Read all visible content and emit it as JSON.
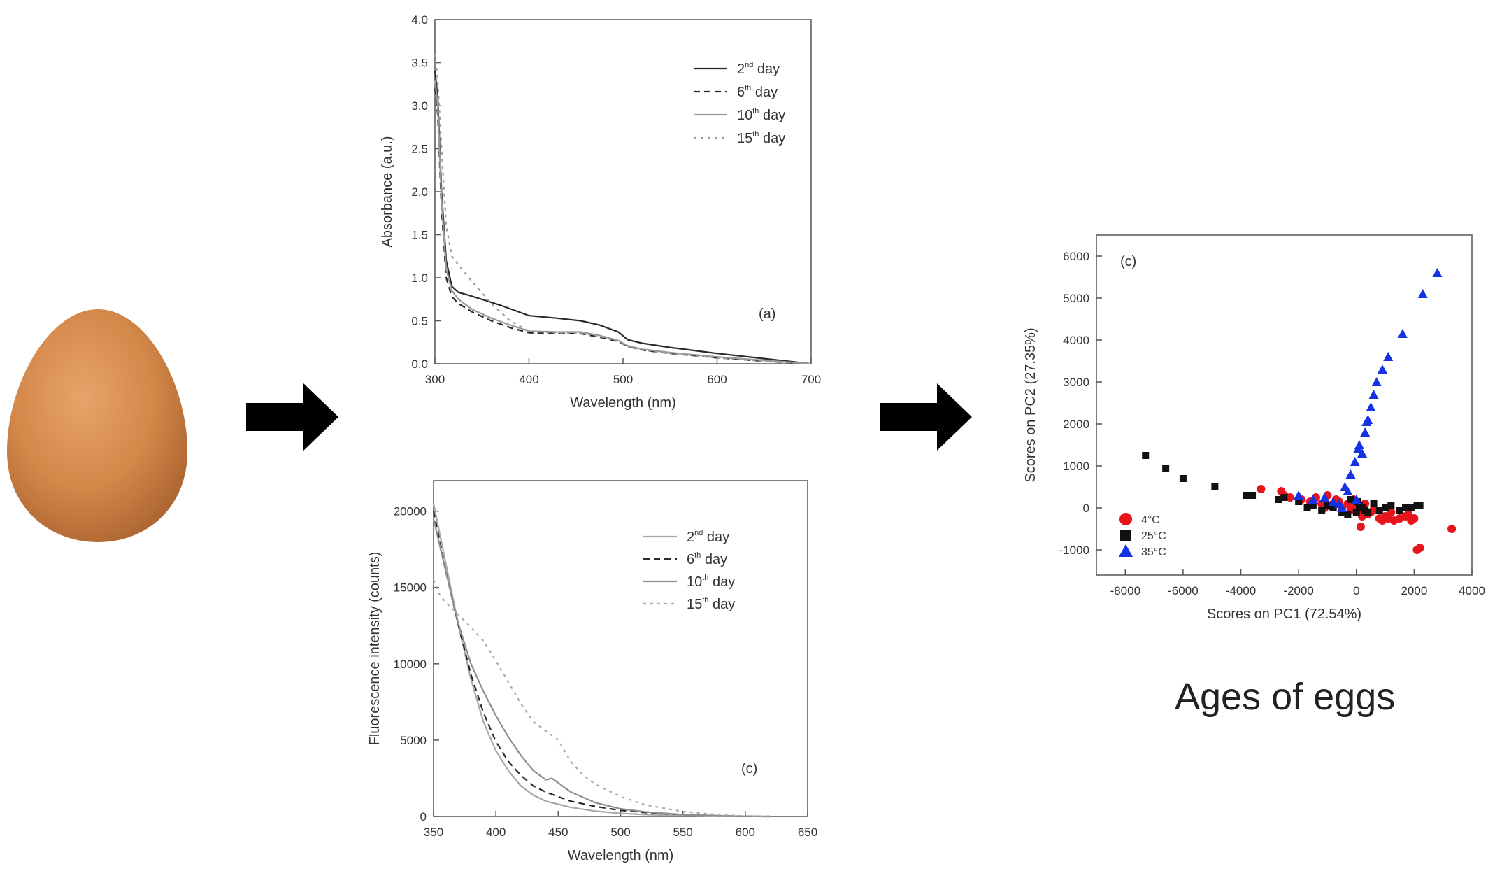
{
  "caption": "Ages of eggs",
  "colors": {
    "red": "#e8141c",
    "black": "#111111",
    "blue": "#1432e6",
    "egg": "#d4884a"
  },
  "chart_data": [
    {
      "type": "line",
      "xlabel": "Wavelength (nm)",
      "ylabel": "Absorbance (a.u.)",
      "xlim": [
        300,
        700
      ],
      "ylim": [
        0,
        4.0
      ],
      "xticks": [
        300,
        400,
        500,
        600,
        700
      ],
      "yticks": [
        0.0,
        0.5,
        1.0,
        1.5,
        2.0,
        2.5,
        3.0,
        3.5,
        4.0
      ],
      "ytick_labels": [
        "0.0",
        "0.5",
        "1.0",
        "1.5",
        "2.0",
        "2.5",
        "3.0",
        "3.5",
        "4.0"
      ],
      "annotation": "(a)",
      "legend_position": "top-right",
      "series": [
        {
          "name": "2nd day",
          "label_num": "2",
          "label_sup": "nd",
          "label_tail": " day",
          "style": "solid",
          "color": "#2a2a2a",
          "x": [
            300,
            303,
            307,
            312,
            318,
            325,
            335,
            350,
            370,
            400,
            430,
            455,
            475,
            495,
            505,
            520,
            550,
            600,
            650,
            700
          ],
          "y": [
            3.4,
            3.1,
            2.0,
            1.2,
            0.9,
            0.83,
            0.8,
            0.75,
            0.68,
            0.56,
            0.53,
            0.5,
            0.45,
            0.37,
            0.28,
            0.24,
            0.19,
            0.12,
            0.06,
            0.0
          ]
        },
        {
          "name": "6th day",
          "label_num": "6",
          "label_sup": "th",
          "label_tail": " day",
          "style": "dashed",
          "color": "#2a2a2a",
          "x": [
            300,
            303,
            307,
            312,
            318,
            325,
            340,
            360,
            380,
            400,
            430,
            455,
            475,
            495,
            505,
            520,
            550,
            600,
            650,
            700
          ],
          "y": [
            3.2,
            2.9,
            1.8,
            1.0,
            0.78,
            0.7,
            0.6,
            0.5,
            0.42,
            0.36,
            0.35,
            0.35,
            0.31,
            0.26,
            0.2,
            0.16,
            0.12,
            0.07,
            0.03,
            0.0
          ]
        },
        {
          "name": "10th day",
          "label_num": "10",
          "label_sup": "th",
          "label_tail": " day",
          "style": "solid",
          "color": "#9a9a9a",
          "x": [
            300,
            303,
            307,
            312,
            318,
            325,
            340,
            360,
            380,
            400,
            430,
            455,
            475,
            495,
            505,
            520,
            550,
            600,
            650,
            700
          ],
          "y": [
            3.3,
            3.0,
            1.9,
            1.1,
            0.85,
            0.75,
            0.63,
            0.53,
            0.45,
            0.38,
            0.37,
            0.37,
            0.33,
            0.27,
            0.21,
            0.17,
            0.13,
            0.08,
            0.04,
            0.0
          ]
        },
        {
          "name": "15th day",
          "label_num": "15",
          "label_sup": "th",
          "label_tail": " day",
          "style": "dotted",
          "color": "#9a9a9a",
          "x": [
            300,
            303,
            307,
            312,
            318,
            325,
            340,
            360,
            380,
            400,
            430,
            455,
            475,
            495,
            505,
            520,
            550,
            600,
            650,
            700
          ],
          "y": [
            3.6,
            3.3,
            2.5,
            1.6,
            1.25,
            1.15,
            0.95,
            0.7,
            0.5,
            0.38,
            0.36,
            0.36,
            0.32,
            0.26,
            0.2,
            0.16,
            0.12,
            0.07,
            0.03,
            0.0
          ]
        }
      ]
    },
    {
      "type": "line",
      "xlabel": "Wavelength (nm)",
      "ylabel": "Fluorescence intensity (counts)",
      "xlim": [
        350,
        650
      ],
      "ylim": [
        0,
        22000
      ],
      "xticks": [
        350,
        400,
        450,
        500,
        550,
        600,
        650
      ],
      "yticks": [
        0,
        5000,
        10000,
        15000,
        20000
      ],
      "ytick_labels": [
        "0",
        "5000",
        "10000",
        "15000",
        "20000"
      ],
      "annotation": "(c)",
      "legend_position": "top-right",
      "series": [
        {
          "name": "2nd day",
          "label_num": "2",
          "label_sup": "nd",
          "label_tail": " day",
          "style": "solid",
          "color": "#a8a8a8",
          "x": [
            350,
            360,
            370,
            380,
            390,
            400,
            410,
            420,
            430,
            440,
            450,
            460,
            480,
            500,
            520,
            550,
            580,
            600,
            620
          ],
          "y": [
            20500,
            16500,
            12500,
            9000,
            6200,
            4300,
            3000,
            2000,
            1400,
            1000,
            800,
            600,
            350,
            200,
            120,
            60,
            20,
            5,
            0
          ]
        },
        {
          "name": "6th day",
          "label_num": "6",
          "label_sup": "th",
          "label_tail": " day",
          "style": "dashed",
          "color": "#2a2a2a",
          "x": [
            350,
            360,
            370,
            380,
            390,
            400,
            410,
            420,
            430,
            440,
            450,
            460,
            480,
            500,
            520,
            550,
            580,
            600,
            620
          ],
          "y": [
            20000,
            16000,
            12500,
            9300,
            6800,
            4900,
            3600,
            2700,
            2000,
            1600,
            1300,
            1000,
            650,
            400,
            250,
            120,
            40,
            10,
            0
          ]
        },
        {
          "name": "10th day",
          "label_num": "10",
          "label_sup": "th",
          "label_tail": " day",
          "style": "solid",
          "color": "#8e8e8e",
          "x": [
            350,
            360,
            370,
            380,
            390,
            400,
            410,
            420,
            430,
            440,
            445,
            450,
            460,
            480,
            500,
            520,
            550,
            580,
            600,
            620
          ],
          "y": [
            19500,
            16000,
            12600,
            10000,
            8200,
            6600,
            5200,
            4000,
            3000,
            2400,
            2500,
            2200,
            1600,
            900,
            500,
            300,
            120,
            40,
            10,
            0
          ]
        },
        {
          "name": "15th day",
          "label_num": "15",
          "label_sup": "th",
          "label_tail": " day",
          "style": "dotted",
          "color": "#a8a8a8",
          "x": [
            350,
            355,
            360,
            370,
            380,
            390,
            400,
            410,
            420,
            430,
            440,
            450,
            460,
            470,
            480,
            500,
            520,
            550,
            580,
            600,
            620
          ],
          "y": [
            15500,
            14500,
            14000,
            13200,
            12400,
            11500,
            10200,
            8800,
            7400,
            6200,
            5600,
            5000,
            3600,
            2700,
            2100,
            1300,
            750,
            320,
            100,
            30,
            0
          ]
        }
      ]
    },
    {
      "type": "scatter",
      "xlabel": "Scores on PC1 (72.54%)",
      "ylabel": "Scores on PC2 (27.35%)",
      "xlim": [
        -9000,
        4000
      ],
      "ylim": [
        -1600,
        6500
      ],
      "xticks": [
        -8000,
        -6000,
        -4000,
        -2000,
        0,
        2000,
        4000
      ],
      "yticks": [
        -1000,
        0,
        1000,
        2000,
        3000,
        4000,
        5000,
        6000
      ],
      "ytick_labels": [
        "-1000",
        "0",
        "1000",
        "2000",
        "3000",
        "4000",
        "5000",
        "6000"
      ],
      "annotation": "(c)",
      "legend_position": "bottom-left",
      "series": [
        {
          "name": "4°C",
          "marker": "circle",
          "color": "#e8141c",
          "points": [
            [
              -3300,
              450
            ],
            [
              -2600,
              400
            ],
            [
              -2500,
              300
            ],
            [
              -2300,
              250
            ],
            [
              -1900,
              200
            ],
            [
              -1600,
              150
            ],
            [
              -1400,
              250
            ],
            [
              -1200,
              100
            ],
            [
              -1100,
              0
            ],
            [
              -1000,
              300
            ],
            [
              -900,
              50
            ],
            [
              -700,
              200
            ],
            [
              -600,
              150
            ],
            [
              -500,
              0
            ],
            [
              -300,
              100
            ],
            [
              -200,
              -50
            ],
            [
              -100,
              200
            ],
            [
              0,
              50
            ],
            [
              100,
              -100
            ],
            [
              200,
              -200
            ],
            [
              300,
              100
            ],
            [
              400,
              -150
            ],
            [
              600,
              -50
            ],
            [
              800,
              -250
            ],
            [
              900,
              -300
            ],
            [
              1000,
              -200
            ],
            [
              1200,
              -100
            ],
            [
              1300,
              -300
            ],
            [
              1500,
              -250
            ],
            [
              1700,
              -200
            ],
            [
              1900,
              -300
            ],
            [
              2000,
              -250
            ],
            [
              2100,
              -1000
            ],
            [
              2200,
              -950
            ],
            [
              3300,
              -500
            ],
            [
              150,
              -450
            ],
            [
              -800,
              100
            ],
            [
              500,
              -100
            ],
            [
              1100,
              -250
            ],
            [
              1800,
              -150
            ]
          ]
        },
        {
          "name": "25°C",
          "marker": "square",
          "color": "#111111",
          "points": [
            [
              -7300,
              1250
            ],
            [
              -6600,
              950
            ],
            [
              -6000,
              700
            ],
            [
              -4900,
              500
            ],
            [
              -3800,
              300
            ],
            [
              -3600,
              300
            ],
            [
              -2700,
              200
            ],
            [
              -2500,
              250
            ],
            [
              -2000,
              150
            ],
            [
              -1700,
              0
            ],
            [
              -1500,
              50
            ],
            [
              -1200,
              -50
            ],
            [
              -1000,
              50
            ],
            [
              -800,
              0
            ],
            [
              -500,
              -100
            ],
            [
              -300,
              -150
            ],
            [
              0,
              -100
            ],
            [
              100,
              50
            ],
            [
              200,
              0
            ],
            [
              300,
              -50
            ],
            [
              400,
              -100
            ],
            [
              600,
              100
            ],
            [
              800,
              -50
            ],
            [
              1000,
              0
            ],
            [
              1200,
              50
            ],
            [
              1500,
              -50
            ],
            [
              1700,
              0
            ],
            [
              1900,
              0
            ],
            [
              2100,
              50
            ],
            [
              2200,
              50
            ],
            [
              -200,
              200
            ],
            [
              50,
              150
            ]
          ]
        },
        {
          "name": "35°C",
          "marker": "triangle",
          "color": "#1432e6",
          "points": [
            [
              -2000,
              300
            ],
            [
              -1500,
              200
            ],
            [
              -1100,
              250
            ],
            [
              -800,
              150
            ],
            [
              -500,
              0
            ],
            [
              -400,
              500
            ],
            [
              -300,
              400
            ],
            [
              -200,
              800
            ],
            [
              -50,
              1100
            ],
            [
              50,
              1400
            ],
            [
              100,
              1500
            ],
            [
              200,
              1300
            ],
            [
              300,
              1800
            ],
            [
              350,
              2050
            ],
            [
              400,
              2100
            ],
            [
              500,
              2400
            ],
            [
              600,
              2700
            ],
            [
              700,
              3000
            ],
            [
              900,
              3300
            ],
            [
              1100,
              3600
            ],
            [
              1600,
              4150
            ],
            [
              2300,
              5100
            ],
            [
              2800,
              5600
            ],
            [
              0,
              200
            ],
            [
              -600,
              100
            ]
          ]
        }
      ]
    }
  ]
}
